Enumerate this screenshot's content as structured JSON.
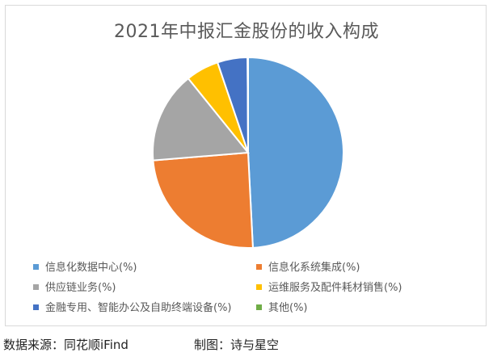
{
  "chart_data": {
    "type": "pie",
    "title": "2021年中报汇金股份的收入构成",
    "unit": "%",
    "slices": [
      {
        "label": "信息化数据中心(%)",
        "value": 49.2,
        "color": "#5b9bd5"
      },
      {
        "label": "信息化系统集成(%)",
        "value": 24.5,
        "color": "#ed7d31"
      },
      {
        "label": "供应链业务(%)",
        "value": 15.5,
        "color": "#a5a5a5"
      },
      {
        "label": "运维服务及配件耗材销售(%)",
        "value": 5.6,
        "color": "#ffc000"
      },
      {
        "label": "金融专用、智能办公及自助终端设备(%)",
        "value": 5.1,
        "color": "#4472c4"
      },
      {
        "label": "其他(%)",
        "value": 0.1,
        "color": "#70ad47"
      }
    ],
    "legend_position": "bottom"
  },
  "footer": {
    "source": "数据来源：同花顺iFind",
    "credit": "制图：诗与星空"
  }
}
